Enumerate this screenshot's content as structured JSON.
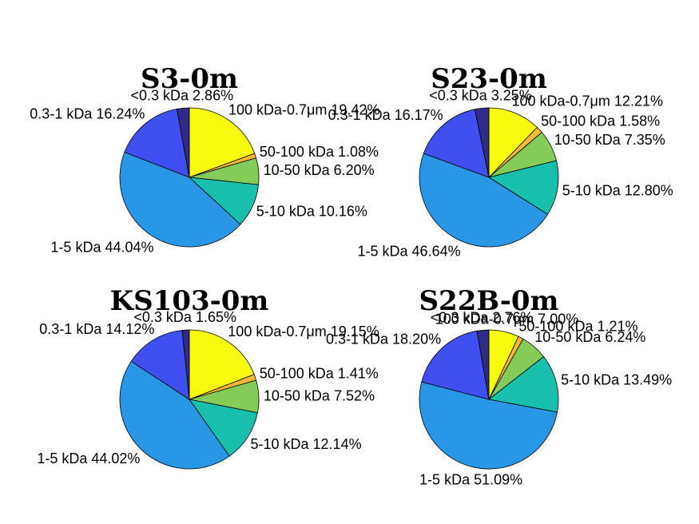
{
  "chart_data": [
    {
      "type": "pie",
      "title": "S3-0m",
      "categories": [
        "100 kDa-0.7μm",
        "50-100 kDa",
        "10-50 kDa",
        "5-10 kDa",
        "1-5 kDa",
        "0.3-1 kDa",
        "<0.3 kDa"
      ],
      "values": [
        19.42,
        1.08,
        6.2,
        10.16,
        44.04,
        16.24,
        2.86
      ],
      "labels": [
        "100 kDa-0.7μm  19.42%",
        "50-100 kDa   1.08%",
        "10-50 kDa   6.20%",
        "5-10 kDa  10.16%",
        "1-5 kDa  44.04%",
        "0.3-1 kDa  16.24%",
        "<0.3 kDa   2.86%"
      ]
    },
    {
      "type": "pie",
      "title": "S23-0m",
      "categories": [
        "100 kDa-0.7μm",
        "50-100 kDa",
        "10-50 kDa",
        "5-10 kDa",
        "1-5 kDa",
        "0.3-1 kDa",
        "<0.3 kDa"
      ],
      "values": [
        12.21,
        1.58,
        7.35,
        12.8,
        46.64,
        16.17,
        3.25
      ],
      "labels": [
        "100 kDa-0.7μm  12.21%",
        "50-100 kDa   1.58%",
        "10-50 kDa   7.35%",
        "5-10 kDa  12.80%",
        "1-5 kDa  46.64%",
        "0.3-1 kDa  16.17%",
        "<0.3 kDa   3.25%"
      ]
    },
    {
      "type": "pie",
      "title": "KS103-0m",
      "categories": [
        "100 kDa-0.7μm",
        "50-100 kDa",
        "10-50 kDa",
        "5-10 kDa",
        "1-5 kDa",
        "0.3-1 kDa",
        "<0.3 kDa"
      ],
      "values": [
        19.15,
        1.41,
        7.52,
        12.14,
        44.02,
        14.12,
        1.65
      ],
      "labels": [
        "100 kDa-0.7μm  19.15%",
        "50-100 kDa   1.41%",
        "10-50 kDa   7.52%",
        "5-10 kDa  12.14%",
        "1-5 kDa  44.02%",
        "0.3-1 kDa  14.12%",
        "<0.3 kDa   1.65%"
      ]
    },
    {
      "type": "pie",
      "title": "S22B-0m",
      "categories": [
        "100 kDa-0.7μm",
        "50-100 kDa",
        "10-50 kDa",
        "5-10 kDa",
        "1-5 kDa",
        "0.3-1 kDa",
        "<0.3 kDa"
      ],
      "values": [
        7.0,
        1.21,
        6.24,
        13.49,
        51.09,
        18.2,
        2.76
      ],
      "labels": [
        "100 kDa-0.7μm  7.00%",
        "50-100 kDa   1.21%",
        "10-50 kDa   6.24%",
        "5-10 kDa  13.49%",
        "1-5 kDa  51.09%",
        "0.3-1 kDa  18.20%",
        "<0.3 kDa   2.76%"
      ]
    }
  ],
  "colors": [
    "#f9fb0e",
    "#fbb935",
    "#84cb5a",
    "#17bfac",
    "#2a97e6",
    "#4050f0",
    "#2f2a8c"
  ]
}
